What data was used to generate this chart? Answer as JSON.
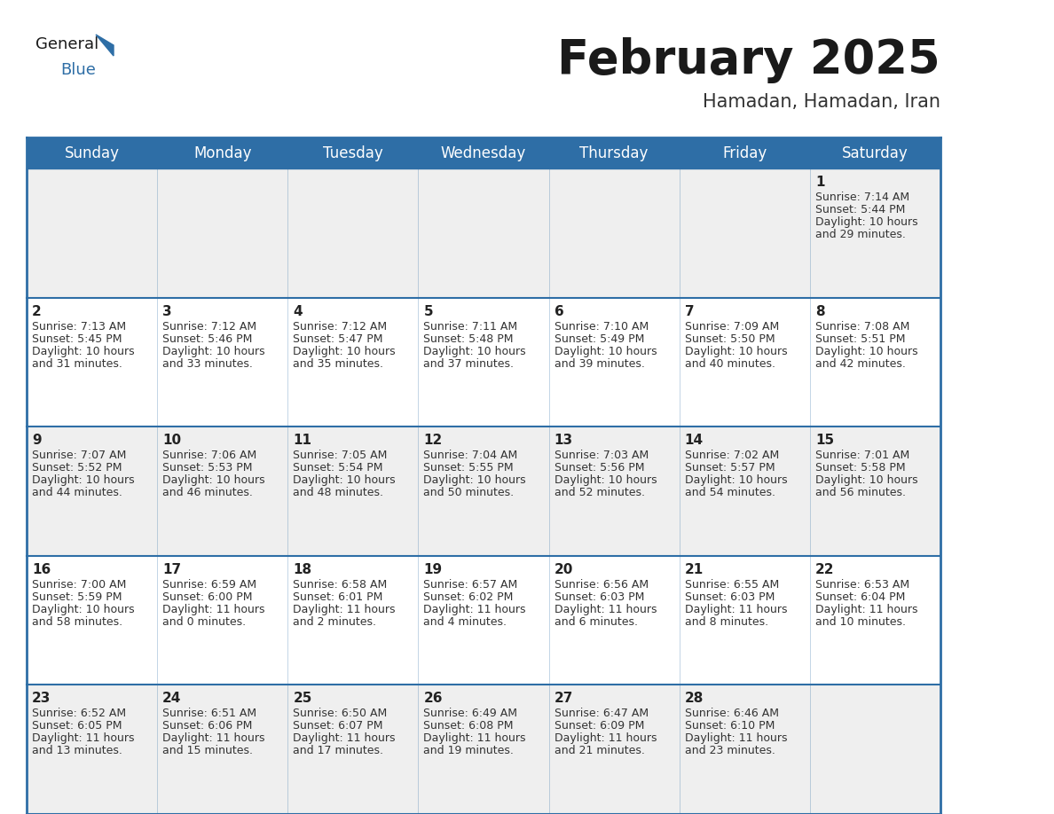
{
  "title": "February 2025",
  "subtitle": "Hamadan, Hamadan, Iran",
  "header_bg": "#2E6EA6",
  "header_text": "#FFFFFF",
  "cell_bg_light": "#EFEFEF",
  "cell_bg_white": "#FFFFFF",
  "border_color": "#2E6EA6",
  "day_headers": [
    "Sunday",
    "Monday",
    "Tuesday",
    "Wednesday",
    "Thursday",
    "Friday",
    "Saturday"
  ],
  "calendar_data": [
    [
      null,
      null,
      null,
      null,
      null,
      null,
      {
        "day": 1,
        "sunrise": "7:14 AM",
        "sunset": "5:44 PM",
        "daylight": "10 hours\nand 29 minutes."
      }
    ],
    [
      {
        "day": 2,
        "sunrise": "7:13 AM",
        "sunset": "5:45 PM",
        "daylight": "10 hours\nand 31 minutes."
      },
      {
        "day": 3,
        "sunrise": "7:12 AM",
        "sunset": "5:46 PM",
        "daylight": "10 hours\nand 33 minutes."
      },
      {
        "day": 4,
        "sunrise": "7:12 AM",
        "sunset": "5:47 PM",
        "daylight": "10 hours\nand 35 minutes."
      },
      {
        "day": 5,
        "sunrise": "7:11 AM",
        "sunset": "5:48 PM",
        "daylight": "10 hours\nand 37 minutes."
      },
      {
        "day": 6,
        "sunrise": "7:10 AM",
        "sunset": "5:49 PM",
        "daylight": "10 hours\nand 39 minutes."
      },
      {
        "day": 7,
        "sunrise": "7:09 AM",
        "sunset": "5:50 PM",
        "daylight": "10 hours\nand 40 minutes."
      },
      {
        "day": 8,
        "sunrise": "7:08 AM",
        "sunset": "5:51 PM",
        "daylight": "10 hours\nand 42 minutes."
      }
    ],
    [
      {
        "day": 9,
        "sunrise": "7:07 AM",
        "sunset": "5:52 PM",
        "daylight": "10 hours\nand 44 minutes."
      },
      {
        "day": 10,
        "sunrise": "7:06 AM",
        "sunset": "5:53 PM",
        "daylight": "10 hours\nand 46 minutes."
      },
      {
        "day": 11,
        "sunrise": "7:05 AM",
        "sunset": "5:54 PM",
        "daylight": "10 hours\nand 48 minutes."
      },
      {
        "day": 12,
        "sunrise": "7:04 AM",
        "sunset": "5:55 PM",
        "daylight": "10 hours\nand 50 minutes."
      },
      {
        "day": 13,
        "sunrise": "7:03 AM",
        "sunset": "5:56 PM",
        "daylight": "10 hours\nand 52 minutes."
      },
      {
        "day": 14,
        "sunrise": "7:02 AM",
        "sunset": "5:57 PM",
        "daylight": "10 hours\nand 54 minutes."
      },
      {
        "day": 15,
        "sunrise": "7:01 AM",
        "sunset": "5:58 PM",
        "daylight": "10 hours\nand 56 minutes."
      }
    ],
    [
      {
        "day": 16,
        "sunrise": "7:00 AM",
        "sunset": "5:59 PM",
        "daylight": "10 hours\nand 58 minutes."
      },
      {
        "day": 17,
        "sunrise": "6:59 AM",
        "sunset": "6:00 PM",
        "daylight": "11 hours\nand 0 minutes."
      },
      {
        "day": 18,
        "sunrise": "6:58 AM",
        "sunset": "6:01 PM",
        "daylight": "11 hours\nand 2 minutes."
      },
      {
        "day": 19,
        "sunrise": "6:57 AM",
        "sunset": "6:02 PM",
        "daylight": "11 hours\nand 4 minutes."
      },
      {
        "day": 20,
        "sunrise": "6:56 AM",
        "sunset": "6:03 PM",
        "daylight": "11 hours\nand 6 minutes."
      },
      {
        "day": 21,
        "sunrise": "6:55 AM",
        "sunset": "6:03 PM",
        "daylight": "11 hours\nand 8 minutes."
      },
      {
        "day": 22,
        "sunrise": "6:53 AM",
        "sunset": "6:04 PM",
        "daylight": "11 hours\nand 10 minutes."
      }
    ],
    [
      {
        "day": 23,
        "sunrise": "6:52 AM",
        "sunset": "6:05 PM",
        "daylight": "11 hours\nand 13 minutes."
      },
      {
        "day": 24,
        "sunrise": "6:51 AM",
        "sunset": "6:06 PM",
        "daylight": "11 hours\nand 15 minutes."
      },
      {
        "day": 25,
        "sunrise": "6:50 AM",
        "sunset": "6:07 PM",
        "daylight": "11 hours\nand 17 minutes."
      },
      {
        "day": 26,
        "sunrise": "6:49 AM",
        "sunset": "6:08 PM",
        "daylight": "11 hours\nand 19 minutes."
      },
      {
        "day": 27,
        "sunrise": "6:47 AM",
        "sunset": "6:09 PM",
        "daylight": "11 hours\nand 21 minutes."
      },
      {
        "day": 28,
        "sunrise": "6:46 AM",
        "sunset": "6:10 PM",
        "daylight": "11 hours\nand 23 minutes."
      },
      null
    ]
  ],
  "title_fontsize": 38,
  "subtitle_fontsize": 15,
  "header_fontsize": 12,
  "day_num_fontsize": 11,
  "cell_text_fontsize": 9
}
